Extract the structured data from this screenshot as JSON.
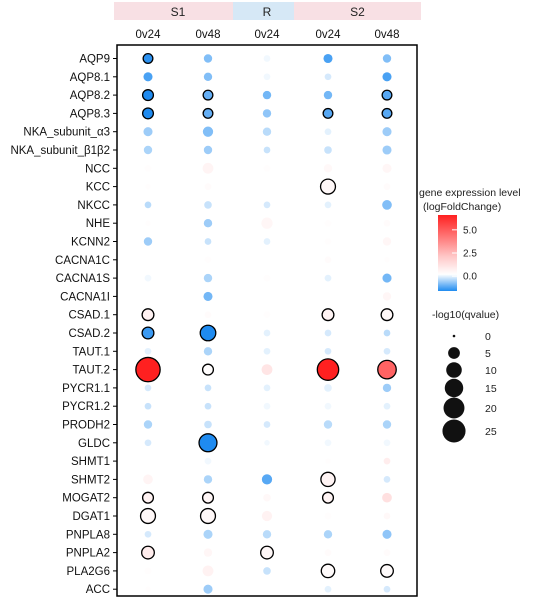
{
  "chart_data": {
    "type": "bubble",
    "groups": [
      {
        "label": "S1",
        "color": "#f8e0e4",
        "columns": [
          0,
          1
        ]
      },
      {
        "label": "R",
        "color": "#d6e8f6",
        "columns": [
          2
        ]
      },
      {
        "label": "S2",
        "color": "#f8e0e4",
        "columns": [
          3,
          4
        ]
      }
    ],
    "columns": [
      "0v24",
      "0v48",
      "0v24",
      "0v24",
      "0v48"
    ],
    "rows": [
      "AQP9",
      "AQP8.1",
      "AQP8.2",
      "AQP8.3",
      "NKA_subunit_α3",
      "NKA_subunit_β1β2",
      "NCC",
      "KCC",
      "NKCC",
      "NHE",
      "KCNN2",
      "CACNA1C",
      "CACNA1S",
      "CACNA1I",
      "CSAD.1",
      "CSAD.2",
      "TAUT.1",
      "TAUT.2",
      "PYCR1.1",
      "PYCR1.2",
      "PRODH2",
      "GLDC",
      "SHMT1",
      "SHMT2",
      "MOGAT2",
      "DGAT1",
      "PNPLA8",
      "PNPLA2",
      "PLA2G6",
      "ACC"
    ],
    "color_legend": {
      "title": [
        "gene expression level",
        "(logFoldChange)"
      ],
      "ticks": [
        5.0,
        2.5,
        0.0
      ],
      "range": [
        -1.6,
        6.6
      ]
    },
    "size_legend": {
      "title": "-log10(qvalue)",
      "values": [
        0,
        5,
        10,
        15,
        20,
        25
      ]
    },
    "points": [
      [
        [
          -1.5,
          3,
          true
        ],
        [
          -0.9,
          2,
          false
        ],
        [
          -0.1,
          1,
          false
        ],
        [
          -1.3,
          2.5,
          false
        ],
        [
          -0.9,
          2,
          false
        ]
      ],
      [
        [
          -1.3,
          2.5,
          false
        ],
        [
          -0.9,
          2,
          false
        ],
        [
          -0.1,
          1,
          false
        ],
        [
          -0.3,
          1,
          false
        ],
        [
          -1.3,
          2.5,
          false
        ]
      ],
      [
        [
          -1.6,
          4,
          true
        ],
        [
          -1.1,
          3,
          true
        ],
        [
          -1.0,
          2,
          false
        ],
        [
          -1.0,
          2,
          false
        ],
        [
          -1.2,
          3,
          true
        ]
      ],
      [
        [
          -1.6,
          4,
          true
        ],
        [
          -1.1,
          3,
          true
        ],
        [
          -0.8,
          2,
          false
        ],
        [
          -1.2,
          3,
          true
        ],
        [
          -1.2,
          3,
          true
        ]
      ],
      [
        [
          -0.7,
          2.5,
          false
        ],
        [
          -0.9,
          3.5,
          false
        ],
        [
          -0.5,
          2,
          false
        ],
        [
          -0.2,
          1,
          false
        ],
        [
          -0.7,
          2.5,
          false
        ]
      ],
      [
        [
          -0.6,
          2,
          false
        ],
        [
          -0.7,
          2,
          false
        ],
        [
          -0.4,
          1,
          false
        ],
        [
          -0.4,
          1.5,
          false
        ],
        [
          -0.7,
          2.5,
          false
        ]
      ],
      [
        [
          0.1,
          1,
          false
        ],
        [
          0.5,
          4,
          false
        ],
        [
          0.1,
          1,
          false
        ],
        [
          0.3,
          2,
          false
        ],
        [
          0.4,
          2.5,
          false
        ]
      ],
      [
        [
          0.1,
          0.5,
          false
        ],
        [
          0.2,
          1,
          false
        ],
        [
          0.0,
          0.5,
          false
        ],
        [
          0.3,
          9,
          true
        ],
        [
          0.2,
          1,
          false
        ]
      ],
      [
        [
          -0.5,
          1,
          false
        ],
        [
          -0.4,
          1.5,
          false
        ],
        [
          -0.3,
          1,
          false
        ],
        [
          -0.2,
          1,
          false
        ],
        [
          -0.9,
          3,
          false
        ]
      ],
      [
        [
          0.1,
          0.5,
          false
        ],
        [
          -0.7,
          2,
          false
        ],
        [
          0.4,
          4.5,
          false
        ],
        [
          0.1,
          1,
          false
        ],
        [
          0.2,
          1,
          false
        ]
      ],
      [
        [
          -0.7,
          2,
          false
        ],
        [
          -0.4,
          1,
          false
        ],
        [
          -0.2,
          1,
          false
        ],
        [
          0.1,
          1,
          false
        ],
        [
          0.4,
          2,
          false
        ]
      ],
      [
        [
          0.0,
          0.5,
          false
        ],
        [
          0.1,
          1,
          false
        ],
        [
          0.0,
          0.5,
          false
        ],
        [
          0.2,
          1,
          false
        ],
        [
          0.1,
          0.5,
          false
        ]
      ],
      [
        [
          -0.1,
          1,
          false
        ],
        [
          -0.6,
          2,
          false
        ],
        [
          0.1,
          1,
          false
        ],
        [
          -0.2,
          1,
          false
        ],
        [
          -1.0,
          2.5,
          false
        ]
      ],
      [
        [
          0.0,
          0.5,
          false
        ],
        [
          -1.0,
          2.5,
          false
        ],
        [
          0.0,
          0.5,
          false
        ],
        [
          0.0,
          0.5,
          false
        ],
        [
          0.4,
          2,
          false
        ]
      ],
      [
        [
          0.6,
          5,
          true
        ],
        [
          0.2,
          1,
          false
        ],
        [
          0.1,
          1,
          false
        ],
        [
          0.5,
          5,
          true
        ],
        [
          0.3,
          5,
          true
        ]
      ],
      [
        [
          -1.4,
          5,
          true
        ],
        [
          -1.6,
          10,
          true
        ],
        [
          -0.2,
          1,
          false
        ],
        [
          -0.3,
          1,
          false
        ],
        [
          -0.5,
          1,
          false
        ]
      ],
      [
        [
          -0.2,
          1,
          false
        ],
        [
          -0.6,
          2,
          false
        ],
        [
          -0.2,
          1,
          false
        ],
        [
          -0.3,
          1,
          false
        ],
        [
          -0.3,
          1,
          false
        ]
      ],
      [
        [
          6.4,
          28,
          true
        ],
        [
          0.1,
          4,
          true
        ],
        [
          1.2,
          4,
          false
        ],
        [
          6.2,
          21,
          true
        ],
        [
          4.6,
          15,
          true
        ]
      ],
      [
        [
          -0.3,
          1,
          false
        ],
        [
          -0.4,
          1,
          false
        ],
        [
          -0.2,
          1,
          false
        ],
        [
          -0.2,
          1.5,
          false
        ],
        [
          -0.7,
          2,
          false
        ]
      ],
      [
        [
          -0.4,
          1,
          false
        ],
        [
          -0.4,
          1,
          false
        ],
        [
          -0.1,
          1,
          false
        ],
        [
          -0.1,
          1,
          false
        ],
        [
          -0.2,
          1,
          false
        ]
      ],
      [
        [
          -0.6,
          2,
          false
        ],
        [
          -0.4,
          1.5,
          false
        ],
        [
          -0.3,
          1,
          false
        ],
        [
          -0.5,
          2,
          false
        ],
        [
          -0.6,
          2,
          false
        ]
      ],
      [
        [
          -0.3,
          1,
          false
        ],
        [
          -1.6,
          14,
          true
        ],
        [
          -0.1,
          0.5,
          false
        ],
        [
          -0.1,
          1,
          false
        ],
        [
          -0.1,
          1,
          false
        ]
      ],
      [
        [
          0.0,
          0.5,
          false
        ],
        [
          -0.1,
          1,
          false
        ],
        [
          0.0,
          0.5,
          false
        ],
        [
          0.1,
          0.5,
          false
        ],
        [
          0.8,
          1,
          false
        ]
      ],
      [
        [
          0.5,
          3,
          false
        ],
        [
          -0.6,
          2,
          false
        ],
        [
          -1.2,
          3.5,
          false
        ],
        [
          0.5,
          8,
          true
        ],
        [
          -0.3,
          1,
          false
        ]
      ],
      [
        [
          0.6,
          4,
          true
        ],
        [
          0.4,
          4,
          true
        ],
        [
          0.3,
          1.5,
          false
        ],
        [
          0.5,
          4,
          true
        ],
        [
          1.4,
          3,
          false
        ]
      ],
      [
        [
          0.3,
          9,
          true
        ],
        [
          0.3,
          9,
          true
        ],
        [
          0.6,
          3.5,
          false
        ],
        [
          0.1,
          1,
          false
        ],
        [
          0.3,
          1,
          false
        ]
      ],
      [
        [
          -0.3,
          1,
          false
        ],
        [
          -0.6,
          2.5,
          false
        ],
        [
          -0.5,
          2,
          false
        ],
        [
          -0.6,
          2,
          false
        ],
        [
          -0.8,
          2.5,
          false
        ]
      ],
      [
        [
          0.8,
          6,
          true
        ],
        [
          0.4,
          2,
          false
        ],
        [
          0.3,
          6,
          true
        ],
        [
          0.2,
          1,
          false
        ],
        [
          0.2,
          1,
          false
        ]
      ],
      [
        [
          0.1,
          1,
          false
        ],
        [
          0.6,
          4,
          false
        ],
        [
          -0.4,
          1.5,
          false
        ],
        [
          0.2,
          7,
          true
        ],
        [
          0.2,
          6,
          true
        ]
      ],
      [
        [
          0.1,
          0.5,
          false
        ],
        [
          -0.7,
          2.5,
          false
        ],
        [
          0.0,
          0.5,
          false
        ],
        [
          -0.2,
          1,
          false
        ],
        [
          -0.3,
          1,
          false
        ]
      ]
    ]
  }
}
